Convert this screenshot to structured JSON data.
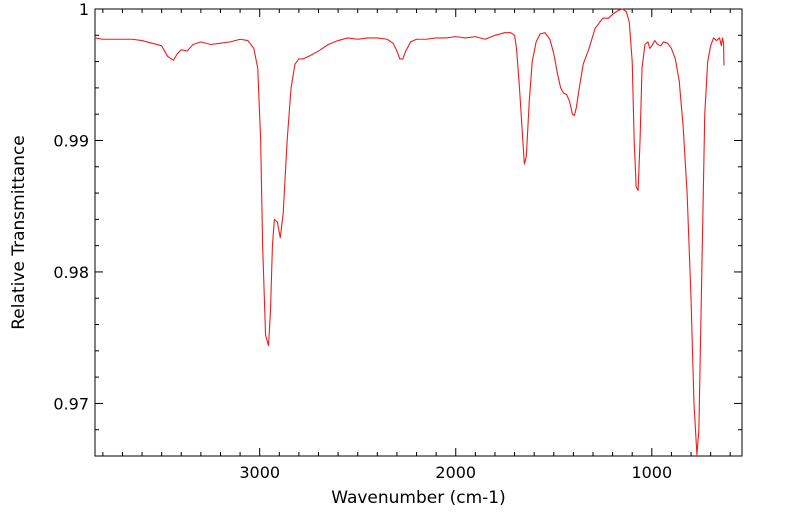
{
  "chart_data": {
    "type": "line",
    "title": "",
    "xlabel": "Wavenumber (cm-1)",
    "ylabel": "Relative Transmittance",
    "xlim": [
      3840,
      540
    ],
    "ylim": [
      0.966,
      1.0
    ],
    "x_reversed": true,
    "grid": false,
    "legend": "none",
    "x_ticks": [
      {
        "value": 3000,
        "label": "3000"
      },
      {
        "value": 2000,
        "label": "2000"
      },
      {
        "value": 1000,
        "label": "1000"
      }
    ],
    "y_ticks": [
      {
        "value": 0.97,
        "label": "0.97"
      },
      {
        "value": 0.98,
        "label": "0.98"
      },
      {
        "value": 0.99,
        "label": "0.99"
      },
      {
        "value": 1.0,
        "label": "1"
      }
    ],
    "series": [
      {
        "color": "#ee1c1c",
        "points": [
          [
            3840,
            0.9978
          ],
          [
            3800,
            0.9977
          ],
          [
            3750,
            0.9977
          ],
          [
            3700,
            0.9977
          ],
          [
            3650,
            0.9977
          ],
          [
            3600,
            0.9976
          ],
          [
            3550,
            0.9974
          ],
          [
            3500,
            0.9972
          ],
          [
            3470,
            0.9964
          ],
          [
            3440,
            0.9961
          ],
          [
            3420,
            0.9966
          ],
          [
            3400,
            0.9969
          ],
          [
            3370,
            0.9968
          ],
          [
            3340,
            0.9973
          ],
          [
            3300,
            0.9975
          ],
          [
            3250,
            0.9973
          ],
          [
            3200,
            0.9974
          ],
          [
            3150,
            0.9975
          ],
          [
            3100,
            0.9977
          ],
          [
            3060,
            0.9976
          ],
          [
            3030,
            0.997
          ],
          [
            3010,
            0.9955
          ],
          [
            2995,
            0.99
          ],
          [
            2985,
            0.982
          ],
          [
            2970,
            0.9752
          ],
          [
            2955,
            0.9744
          ],
          [
            2945,
            0.977
          ],
          [
            2935,
            0.982
          ],
          [
            2925,
            0.984
          ],
          [
            2910,
            0.9838
          ],
          [
            2895,
            0.9826
          ],
          [
            2880,
            0.9845
          ],
          [
            2860,
            0.99
          ],
          [
            2840,
            0.994
          ],
          [
            2820,
            0.9958
          ],
          [
            2800,
            0.9962
          ],
          [
            2780,
            0.9962
          ],
          [
            2750,
            0.9964
          ],
          [
            2700,
            0.9968
          ],
          [
            2650,
            0.9973
          ],
          [
            2600,
            0.9976
          ],
          [
            2550,
            0.9978
          ],
          [
            2500,
            0.9977
          ],
          [
            2450,
            0.9978
          ],
          [
            2400,
            0.9978
          ],
          [
            2350,
            0.9977
          ],
          [
            2320,
            0.9974
          ],
          [
            2300,
            0.9968
          ],
          [
            2285,
            0.9962
          ],
          [
            2270,
            0.9962
          ],
          [
            2255,
            0.9968
          ],
          [
            2230,
            0.9975
          ],
          [
            2200,
            0.9977
          ],
          [
            2150,
            0.9977
          ],
          [
            2100,
            0.9978
          ],
          [
            2050,
            0.9978
          ],
          [
            2000,
            0.9979
          ],
          [
            1950,
            0.9978
          ],
          [
            1900,
            0.9979
          ],
          [
            1850,
            0.9977
          ],
          [
            1800,
            0.998
          ],
          [
            1750,
            0.9982
          ],
          [
            1720,
            0.9982
          ],
          [
            1700,
            0.998
          ],
          [
            1690,
            0.997
          ],
          [
            1675,
            0.994
          ],
          [
            1660,
            0.9905
          ],
          [
            1650,
            0.9882
          ],
          [
            1640,
            0.9888
          ],
          [
            1625,
            0.993
          ],
          [
            1610,
            0.996
          ],
          [
            1590,
            0.9975
          ],
          [
            1570,
            0.9981
          ],
          [
            1545,
            0.9982
          ],
          [
            1520,
            0.9977
          ],
          [
            1500,
            0.9966
          ],
          [
            1480,
            0.995
          ],
          [
            1465,
            0.994
          ],
          [
            1450,
            0.9936
          ],
          [
            1435,
            0.9935
          ],
          [
            1420,
            0.993
          ],
          [
            1405,
            0.992
          ],
          [
            1395,
            0.9919
          ],
          [
            1385,
            0.9925
          ],
          [
            1370,
            0.994
          ],
          [
            1350,
            0.9958
          ],
          [
            1320,
            0.997
          ],
          [
            1290,
            0.9985
          ],
          [
            1250,
            0.9993
          ],
          [
            1220,
            0.9993
          ],
          [
            1200,
            0.9996
          ],
          [
            1170,
            0.9999
          ],
          [
            1150,
            1.0
          ],
          [
            1130,
            0.9998
          ],
          [
            1115,
            0.999
          ],
          [
            1100,
            0.996
          ],
          [
            1090,
            0.99
          ],
          [
            1080,
            0.9865
          ],
          [
            1070,
            0.9862
          ],
          [
            1060,
            0.99
          ],
          [
            1050,
            0.9955
          ],
          [
            1035,
            0.9973
          ],
          [
            1020,
            0.9975
          ],
          [
            1010,
            0.997
          ],
          [
            1000,
            0.9972
          ],
          [
            985,
            0.9976
          ],
          [
            970,
            0.9973
          ],
          [
            955,
            0.9972
          ],
          [
            940,
            0.9975
          ],
          [
            920,
            0.9974
          ],
          [
            900,
            0.997
          ],
          [
            880,
            0.9962
          ],
          [
            860,
            0.9945
          ],
          [
            840,
            0.991
          ],
          [
            820,
            0.986
          ],
          [
            800,
            0.978
          ],
          [
            785,
            0.97
          ],
          [
            770,
            0.9661
          ],
          [
            760,
            0.968
          ],
          [
            745,
            0.98
          ],
          [
            730,
            0.992
          ],
          [
            715,
            0.996
          ],
          [
            700,
            0.9972
          ],
          [
            685,
            0.9978
          ],
          [
            670,
            0.9976
          ],
          [
            655,
            0.9978
          ],
          [
            645,
            0.9972
          ],
          [
            640,
            0.9978
          ],
          [
            634,
            0.9974
          ],
          [
            632,
            0.9957
          ]
        ]
      }
    ]
  }
}
